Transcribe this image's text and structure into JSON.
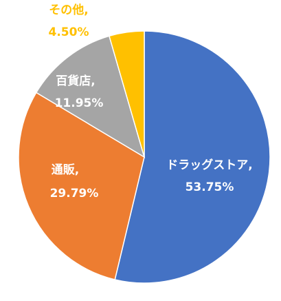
{
  "chart_data": {
    "type": "pie",
    "categories": [
      "ドラッグストア,",
      "通販,",
      "百貨店,",
      "その他,"
    ],
    "values": [
      53.75,
      29.79,
      11.95,
      4.5
    ],
    "value_labels": [
      "53.75%",
      "29.79%",
      "11.95%",
      "4.50%"
    ],
    "colors": [
      "#4472c4",
      "#ed7d31",
      "#a5a5a5",
      "#ffc000"
    ],
    "label_colors": [
      "#ffffff",
      "#ffffff",
      "#ffffff",
      "#ffc000"
    ]
  }
}
